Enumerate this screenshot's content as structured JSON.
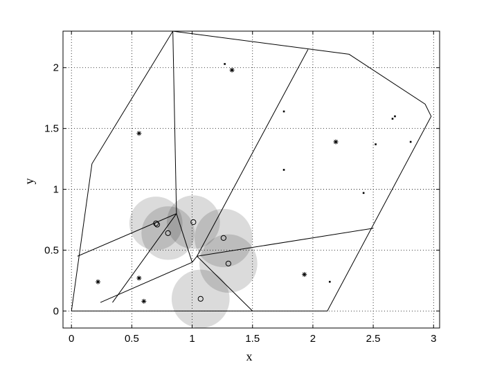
{
  "chart_data": {
    "type": "scatter",
    "xlabel": "x",
    "ylabel": "y",
    "xlim": [
      -0.07,
      3.05
    ],
    "ylim": [
      -0.14,
      2.3
    ],
    "xticks": [
      0,
      0.5,
      1,
      1.5,
      2,
      2.5,
      3
    ],
    "yticks": [
      0,
      0.5,
      1,
      1.5,
      2
    ],
    "xtick_labels": [
      "0",
      "0.5",
      "1",
      "1.5",
      "2",
      "2.5",
      "3"
    ],
    "ytick_labels": [
      "0",
      "0.5",
      "1",
      "1.5",
      "2"
    ],
    "grid": true,
    "boundary": [
      [
        0,
        0
      ],
      [
        0.17,
        1.21
      ],
      [
        0.84,
        2.3
      ],
      [
        2.3,
        2.11
      ],
      [
        2.93,
        1.7
      ],
      [
        2.98,
        1.6
      ],
      [
        2.12,
        0
      ],
      [
        0,
        0
      ]
    ],
    "edges": [
      [
        [
          0.84,
          2.3
        ],
        [
          0.87,
          0.8
        ]
      ],
      [
        [
          0.87,
          0.8
        ],
        [
          0.05,
          0.45
        ]
      ],
      [
        [
          0.87,
          0.8
        ],
        [
          0.34,
          0.07
        ]
      ],
      [
        [
          0.87,
          0.8
        ],
        [
          1.0,
          0.4
        ]
      ],
      [
        [
          1.0,
          0.4
        ],
        [
          0.24,
          0.07
        ]
      ],
      [
        [
          1.0,
          0.4
        ],
        [
          1.04,
          0.45
        ]
      ],
      [
        [
          1.04,
          0.45
        ],
        [
          1.96,
          2.15
        ]
      ],
      [
        [
          1.04,
          0.45
        ],
        [
          1.5,
          0
        ]
      ],
      [
        [
          1.04,
          0.45
        ],
        [
          2.5,
          0.68
        ]
      ]
    ],
    "disks": [
      {
        "cx": 0.7,
        "cy": 0.72,
        "r": 0.22
      },
      {
        "cx": 0.8,
        "cy": 0.64,
        "r": 0.22
      },
      {
        "cx": 1.01,
        "cy": 0.73,
        "r": 0.22
      },
      {
        "cx": 1.26,
        "cy": 0.6,
        "r": 0.24
      },
      {
        "cx": 1.3,
        "cy": 0.39,
        "r": 0.24
      },
      {
        "cx": 1.07,
        "cy": 0.1,
        "r": 0.24
      }
    ],
    "series": [
      {
        "marker": "circle",
        "points": [
          [
            0.7,
            0.72
          ],
          [
            0.71,
            0.71
          ],
          [
            0.8,
            0.64
          ],
          [
            1.01,
            0.73
          ],
          [
            1.26,
            0.6
          ],
          [
            1.3,
            0.39
          ],
          [
            1.07,
            0.1
          ]
        ]
      },
      {
        "marker": "star",
        "points": [
          [
            0.22,
            0.24
          ],
          [
            0.56,
            1.46
          ],
          [
            0.56,
            0.27
          ],
          [
            0.6,
            0.08
          ],
          [
            1.33,
            1.98
          ],
          [
            1.93,
            0.3
          ],
          [
            2.19,
            1.39
          ]
        ]
      },
      {
        "marker": "dot",
        "points": [
          [
            1.27,
            2.03
          ],
          [
            1.76,
            1.64
          ],
          [
            1.76,
            1.16
          ],
          [
            2.14,
            0.24
          ],
          [
            2.42,
            0.97
          ],
          [
            2.52,
            1.37
          ],
          [
            2.66,
            1.58
          ],
          [
            2.68,
            1.6
          ],
          [
            2.81,
            1.39
          ]
        ]
      }
    ]
  }
}
